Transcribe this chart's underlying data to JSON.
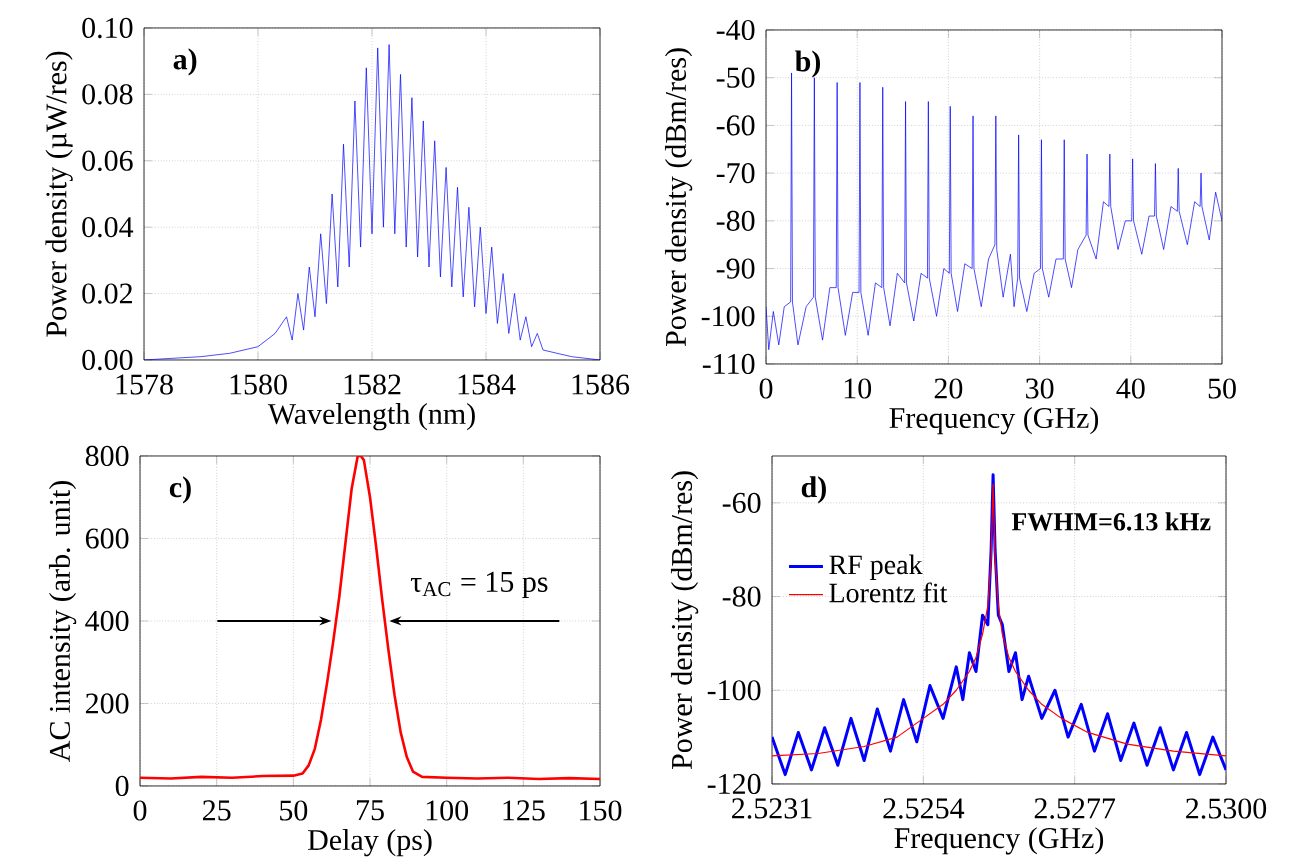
{
  "chart_data": [
    {
      "type": "line",
      "xlabel": "Wavelength (nm)",
      "ylabel": "Power density (µW/res)",
      "annotations": [
        "a)"
      ],
      "xlim": [
        1578,
        1586
      ],
      "ylim": [
        0,
        0.1
      ],
      "xticks": [
        1578,
        1580,
        1582,
        1584,
        1586
      ],
      "yticks": [
        {
          "value": 0,
          "label": "0.00"
        },
        {
          "value": 0.02,
          "label": "0.02"
        },
        {
          "value": 0.04,
          "label": "0.04"
        },
        {
          "value": 0.06,
          "label": "0.06"
        },
        {
          "value": 0.08,
          "label": "0.08"
        },
        {
          "value": 0.1,
          "label": "0.10"
        }
      ],
      "grid": true,
      "series": [
        {
          "color": "#0000ff",
          "x": [
            1578,
            1579,
            1579.5,
            1580,
            1580.3,
            1580.5,
            1580.6,
            1580.7,
            1580.8,
            1580.9,
            1581.0,
            1581.1,
            1581.2,
            1581.3,
            1581.4,
            1581.5,
            1581.6,
            1581.7,
            1581.8,
            1581.9,
            1582.0,
            1582.1,
            1582.2,
            1582.3,
            1582.4,
            1582.5,
            1582.6,
            1582.7,
            1582.8,
            1582.9,
            1583.0,
            1583.1,
            1583.2,
            1583.3,
            1583.4,
            1583.5,
            1583.6,
            1583.7,
            1583.8,
            1583.9,
            1584.0,
            1584.1,
            1584.2,
            1584.3,
            1584.4,
            1584.5,
            1584.6,
            1584.7,
            1584.8,
            1584.9,
            1585.0,
            1585.5,
            1586
          ],
          "values": [
            0.0,
            0.001,
            0.002,
            0.004,
            0.008,
            0.013,
            0.006,
            0.02,
            0.009,
            0.028,
            0.013,
            0.038,
            0.017,
            0.05,
            0.022,
            0.065,
            0.028,
            0.078,
            0.034,
            0.088,
            0.038,
            0.094,
            0.04,
            0.095,
            0.038,
            0.086,
            0.034,
            0.079,
            0.031,
            0.072,
            0.028,
            0.066,
            0.025,
            0.058,
            0.022,
            0.052,
            0.019,
            0.046,
            0.016,
            0.04,
            0.014,
            0.034,
            0.011,
            0.026,
            0.008,
            0.02,
            0.006,
            0.013,
            0.004,
            0.008,
            0.003,
            0.001,
            0.0
          ]
        }
      ]
    },
    {
      "type": "line",
      "xlabel": "Frequency (GHz)",
      "ylabel": "Power density (dBm/res)",
      "annotations": [
        "b)"
      ],
      "xlim": [
        0,
        50
      ],
      "ylim": [
        -110,
        -40
      ],
      "xticks": [
        0,
        10,
        20,
        30,
        40,
        50
      ],
      "yticks": [
        -110,
        -100,
        -90,
        -80,
        -70,
        -60,
        -50,
        -40
      ],
      "grid": true,
      "series": [
        {
          "color": "#0000ff",
          "x": [
            0,
            0.3,
            0.8,
            1.4,
            2.0,
            2.7,
            2.8,
            2.9,
            3.5,
            4.4,
            5.2,
            5.3,
            5.4,
            6.2,
            7.0,
            7.7,
            7.8,
            7.9,
            8.7,
            9.5,
            10.2,
            10.3,
            10.4,
            11.2,
            12.0,
            12.7,
            12.8,
            12.9,
            13.6,
            14.4,
            15.2,
            15.3,
            15.4,
            16.2,
            17.0,
            17.7,
            17.8,
            17.9,
            18.7,
            19.5,
            20.1,
            20.2,
            20.3,
            21.0,
            21.8,
            22.6,
            22.7,
            22.8,
            23.6,
            24.4,
            25.1,
            25.2,
            25.3,
            26.0,
            26.8,
            27.2,
            27.6,
            27.7,
            27.8,
            28.6,
            29.4,
            30.1,
            30.2,
            30.3,
            31.0,
            31.8,
            32.6,
            32.7,
            32.8,
            33.5,
            34.2,
            35.1,
            35.2,
            35.3,
            36.2,
            37.0,
            37.6,
            37.7,
            37.8,
            38.6,
            39.4,
            40.1,
            40.2,
            40.3,
            41.2,
            42.0,
            42.6,
            42.7,
            42.8,
            43.6,
            44.4,
            45.1,
            45.2,
            45.3,
            46.2,
            47.0,
            47.6,
            47.7,
            47.8,
            48.6,
            49.3,
            50
          ],
          "values": [
            -98,
            -107,
            -99,
            -106,
            -98,
            -97,
            -49,
            -97,
            -106,
            -98,
            -96,
            -50,
            -96,
            -105,
            -94,
            -94,
            -51,
            -94,
            -104,
            -95,
            -95,
            -51,
            -95,
            -104,
            -93,
            -94,
            -52,
            -94,
            -102,
            -91,
            -93,
            -55,
            -93,
            -101,
            -91,
            -92,
            -55,
            -92,
            -100,
            -90,
            -91,
            -56,
            -91,
            -99,
            -89,
            -90,
            -58,
            -90,
            -98,
            -88,
            -85,
            -58,
            -86,
            -96,
            -87,
            -98,
            -92,
            -62,
            -92,
            -99,
            -91,
            -90,
            -63,
            -90,
            -96,
            -88,
            -88,
            -63,
            -88,
            -94,
            -86,
            -83,
            -66,
            -83,
            -88,
            -76,
            -77,
            -66,
            -77,
            -86,
            -80,
            -80,
            -67,
            -80,
            -87,
            -79,
            -79,
            -68,
            -79,
            -86,
            -77,
            -78,
            -69,
            -78,
            -85,
            -76,
            -77,
            -70,
            -77,
            -84,
            -74,
            -80
          ]
        }
      ]
    },
    {
      "type": "line",
      "xlabel": "Delay (ps)",
      "ylabel": "AC intensity (arb. unit)",
      "annotations": [
        "c)",
        {
          "text": "τ$_{AC}$ = 15 ps",
          "x": 80,
          "y": 400
        }
      ],
      "xlim": [
        0,
        150
      ],
      "ylim": [
        0,
        800
      ],
      "xticks": [
        0,
        25,
        50,
        75,
        100,
        125,
        150
      ],
      "yticks": [
        0,
        200,
        400,
        600,
        800
      ],
      "grid": true,
      "series": [
        {
          "color": "#ff0000",
          "x": [
            0,
            10,
            20,
            30,
            40,
            50,
            53,
            55,
            57,
            59,
            61,
            63,
            65,
            67,
            69,
            71,
            72,
            73,
            75,
            77,
            79,
            81,
            83,
            85,
            87,
            89,
            92,
            100,
            110,
            120,
            130,
            140,
            150
          ],
          "values": [
            20,
            18,
            22,
            20,
            24,
            25,
            30,
            50,
            90,
            160,
            250,
            350,
            460,
            590,
            720,
            800,
            800,
            790,
            700,
            580,
            450,
            330,
            220,
            130,
            70,
            35,
            22,
            20,
            18,
            20,
            17,
            19,
            17
          ]
        }
      ]
    },
    {
      "type": "line",
      "xlabel": "Frequency (GHz)",
      "ylabel": "Power density (dBm/res)",
      "annotations": [
        "d)",
        "FWHM=6.13 kHz"
      ],
      "xlim": [
        2.5231,
        2.53
      ],
      "ylim": [
        -120,
        -50
      ],
      "xticks": [
        2.5231,
        2.5254,
        2.5277,
        {
          "value": 2.53,
          "label": "2.5300"
        }
      ],
      "yticks": [
        -120,
        -100,
        -80,
        -60
      ],
      "grid": true,
      "legend": "left",
      "series": [
        {
          "name": "RF peak",
          "color": "#0000ff",
          "x": [
            2.5231,
            2.5233,
            2.5235,
            2.5237,
            2.5239,
            2.5241,
            2.5243,
            2.5245,
            2.5247,
            2.5249,
            2.5251,
            2.5253,
            2.5255,
            2.5257,
            2.5259,
            2.526,
            2.5261,
            2.5262,
            2.5263,
            2.52638,
            2.52643,
            2.52646,
            2.52649,
            2.52654,
            2.5266,
            2.5267,
            2.5268,
            2.5269,
            2.527,
            2.5272,
            2.5274,
            2.5276,
            2.5278,
            2.528,
            2.5282,
            2.5284,
            2.5286,
            2.5288,
            2.529,
            2.5292,
            2.5294,
            2.5296,
            2.5298,
            2.53
          ],
          "values": [
            -110,
            -118,
            -109,
            -117,
            -108,
            -116,
            -106,
            -115,
            -104,
            -113,
            -102,
            -111,
            -99,
            -106,
            -95,
            -102,
            -92,
            -96,
            -84,
            -86,
            -70,
            -54,
            -70,
            -84,
            -86,
            -96,
            -92,
            -102,
            -97,
            -106,
            -100,
            -110,
            -103,
            -113,
            -105,
            -115,
            -107,
            -116,
            -108,
            -117,
            -109,
            -118,
            -110,
            -117
          ]
        },
        {
          "name": "Lorentz fit",
          "color": "#ff0000",
          "x": [
            2.5231,
            2.5238,
            2.5245,
            2.525,
            2.5254,
            2.5257,
            2.5259,
            2.5261,
            2.5262,
            2.5263,
            2.52638,
            2.52643,
            2.52646,
            2.52649,
            2.52654,
            2.5266,
            2.5267,
            2.5268,
            2.527,
            2.5272,
            2.5275,
            2.5279,
            2.5285,
            2.5292,
            2.53
          ],
          "values": [
            -114,
            -113.5,
            -112,
            -110,
            -106,
            -103,
            -100,
            -96,
            -93,
            -88,
            -82,
            -72,
            -56,
            -72,
            -82,
            -88,
            -93,
            -96,
            -100,
            -103,
            -106,
            -109,
            -111.5,
            -113,
            -114
          ]
        }
      ]
    }
  ]
}
